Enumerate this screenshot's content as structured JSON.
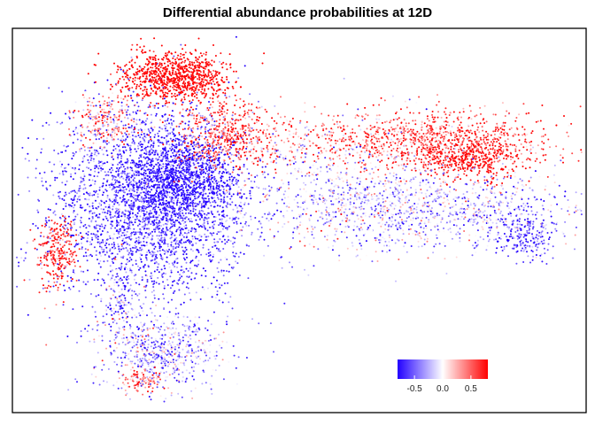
{
  "chart_data": {
    "type": "scatter",
    "title": "Differential abundance probabilities at 12D",
    "xlabel": "",
    "ylabel": "",
    "xlim": [
      0,
      100
    ],
    "ylim": [
      0,
      100
    ],
    "axes_visible": false,
    "grid": false,
    "color_scale": {
      "name": "differential abundance probability",
      "low_color": "#2200ff",
      "mid_color": "#ffffff",
      "high_color": "#ff0000",
      "range": [
        -0.8,
        0.8
      ],
      "ticks": [
        -0.5,
        0.0,
        0.5
      ],
      "tick_labels": [
        "-0.5",
        "0.0",
        "0.5"
      ],
      "legend_position": "bottom-right-inside"
    },
    "clusters": [
      {
        "name": "left-blue-mass",
        "cx": 24,
        "cy": 55,
        "sx": 9.0,
        "sy": 13.0,
        "n": 3200,
        "mean": -0.6,
        "spread": 0.25
      },
      {
        "name": "left-inner-core",
        "cx": 29,
        "cy": 62,
        "sx": 5.0,
        "sy": 6.0,
        "n": 900,
        "mean": -0.8,
        "spread": 0.12
      },
      {
        "name": "top-red-blob",
        "cx": 28,
        "cy": 89,
        "sx": 5.0,
        "sy": 3.2,
        "n": 900,
        "mean": 0.85,
        "spread": 0.12
      },
      {
        "name": "left-edge-red",
        "cx": 7,
        "cy": 42,
        "sx": 1.8,
        "sy": 5.0,
        "n": 260,
        "mean": 0.7,
        "spread": 0.2
      },
      {
        "name": "center-red-band",
        "cx": 37,
        "cy": 73,
        "sx": 4.5,
        "sy": 4.5,
        "n": 500,
        "mean": 0.6,
        "spread": 0.25
      },
      {
        "name": "upper-left-red",
        "cx": 16,
        "cy": 77,
        "sx": 3.0,
        "sy": 3.5,
        "n": 220,
        "mean": 0.4,
        "spread": 0.3
      },
      {
        "name": "right-arc-red",
        "cx": 72,
        "cy": 72,
        "sx": 13.0,
        "sy": 4.0,
        "n": 1100,
        "mean": 0.55,
        "spread": 0.3
      },
      {
        "name": "right-tip-red",
        "cx": 80,
        "cy": 67,
        "sx": 5.0,
        "sy": 3.0,
        "n": 450,
        "mean": 0.8,
        "spread": 0.15
      },
      {
        "name": "right-lower-mixed",
        "cx": 74,
        "cy": 53,
        "sx": 14.0,
        "sy": 5.0,
        "n": 1000,
        "mean": -0.25,
        "spread": 0.35
      },
      {
        "name": "right-end-blue",
        "cx": 90,
        "cy": 46,
        "sx": 3.0,
        "sy": 3.0,
        "n": 200,
        "mean": -0.6,
        "spread": 0.25
      },
      {
        "name": "middle-sparse",
        "cx": 58,
        "cy": 58,
        "sx": 9.0,
        "sy": 9.0,
        "n": 600,
        "mean": -0.1,
        "spread": 0.35
      },
      {
        "name": "bottom-cluster",
        "cx": 25,
        "cy": 15,
        "sx": 5.5,
        "sy": 5.0,
        "n": 650,
        "mean": -0.3,
        "spread": 0.35
      },
      {
        "name": "bottom-tip-red",
        "cx": 22,
        "cy": 7,
        "sx": 2.0,
        "sy": 1.8,
        "n": 90,
        "mean": 0.5,
        "spread": 0.25
      },
      {
        "name": "connector-stream",
        "cx": 18,
        "cy": 30,
        "sx": 1.5,
        "sy": 5.0,
        "n": 120,
        "mean": -0.2,
        "spread": 0.4
      }
    ]
  }
}
